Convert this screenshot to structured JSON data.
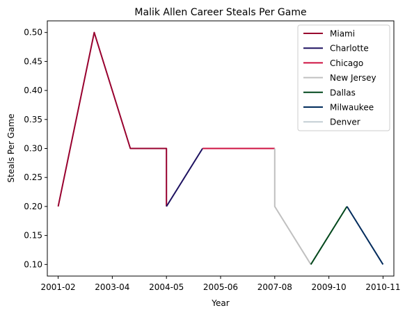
{
  "chart_data": {
    "type": "line",
    "title": "Malik Allen Career Steals Per Game",
    "xlabel": "Year",
    "ylabel": "Steals Per Game",
    "x_ticks": [
      "2001-02",
      "2003-04",
      "2004-05",
      "2005-06",
      "2007-08",
      "2009-10",
      "2010-11"
    ],
    "xlim": [
      2001.9,
      2010.1
    ],
    "ylim": [
      0.08,
      0.52
    ],
    "y_ticks": [
      0.1,
      0.15,
      0.2,
      0.25,
      0.3,
      0.35,
      0.4,
      0.45,
      0.5
    ],
    "legend_position": "top-right",
    "grid": false,
    "series": [
      {
        "name": "Miami",
        "color": "#98002E",
        "points": [
          [
            2002,
            0.2
          ],
          [
            2003,
            0.5
          ],
          [
            2004,
            0.3
          ],
          [
            2005,
            0.3
          ],
          [
            2005,
            0.2
          ]
        ]
      },
      {
        "name": "Charlotte",
        "color": "#1D1160",
        "points": [
          [
            2005,
            0.2
          ],
          [
            2006,
            0.3
          ]
        ]
      },
      {
        "name": "Chicago",
        "color": "#CE1141",
        "points": [
          [
            2006,
            0.3
          ],
          [
            2008,
            0.3
          ]
        ]
      },
      {
        "name": "New Jersey",
        "color": "#C0C0C0",
        "points": [
          [
            2008,
            0.3
          ],
          [
            2008,
            0.2
          ],
          [
            2009,
            0.1
          ]
        ]
      },
      {
        "name": "Dallas",
        "color": "#00471B",
        "points": [
          [
            2009,
            0.1
          ],
          [
            2010,
            0.2
          ]
        ]
      },
      {
        "name": "Milwaukee",
        "color": "#002B5C",
        "points": [
          [
            2010,
            0.2
          ],
          [
            2011,
            0.1
          ]
        ]
      },
      {
        "name": "Denver",
        "color": "#C4CED4",
        "points": []
      }
    ]
  }
}
